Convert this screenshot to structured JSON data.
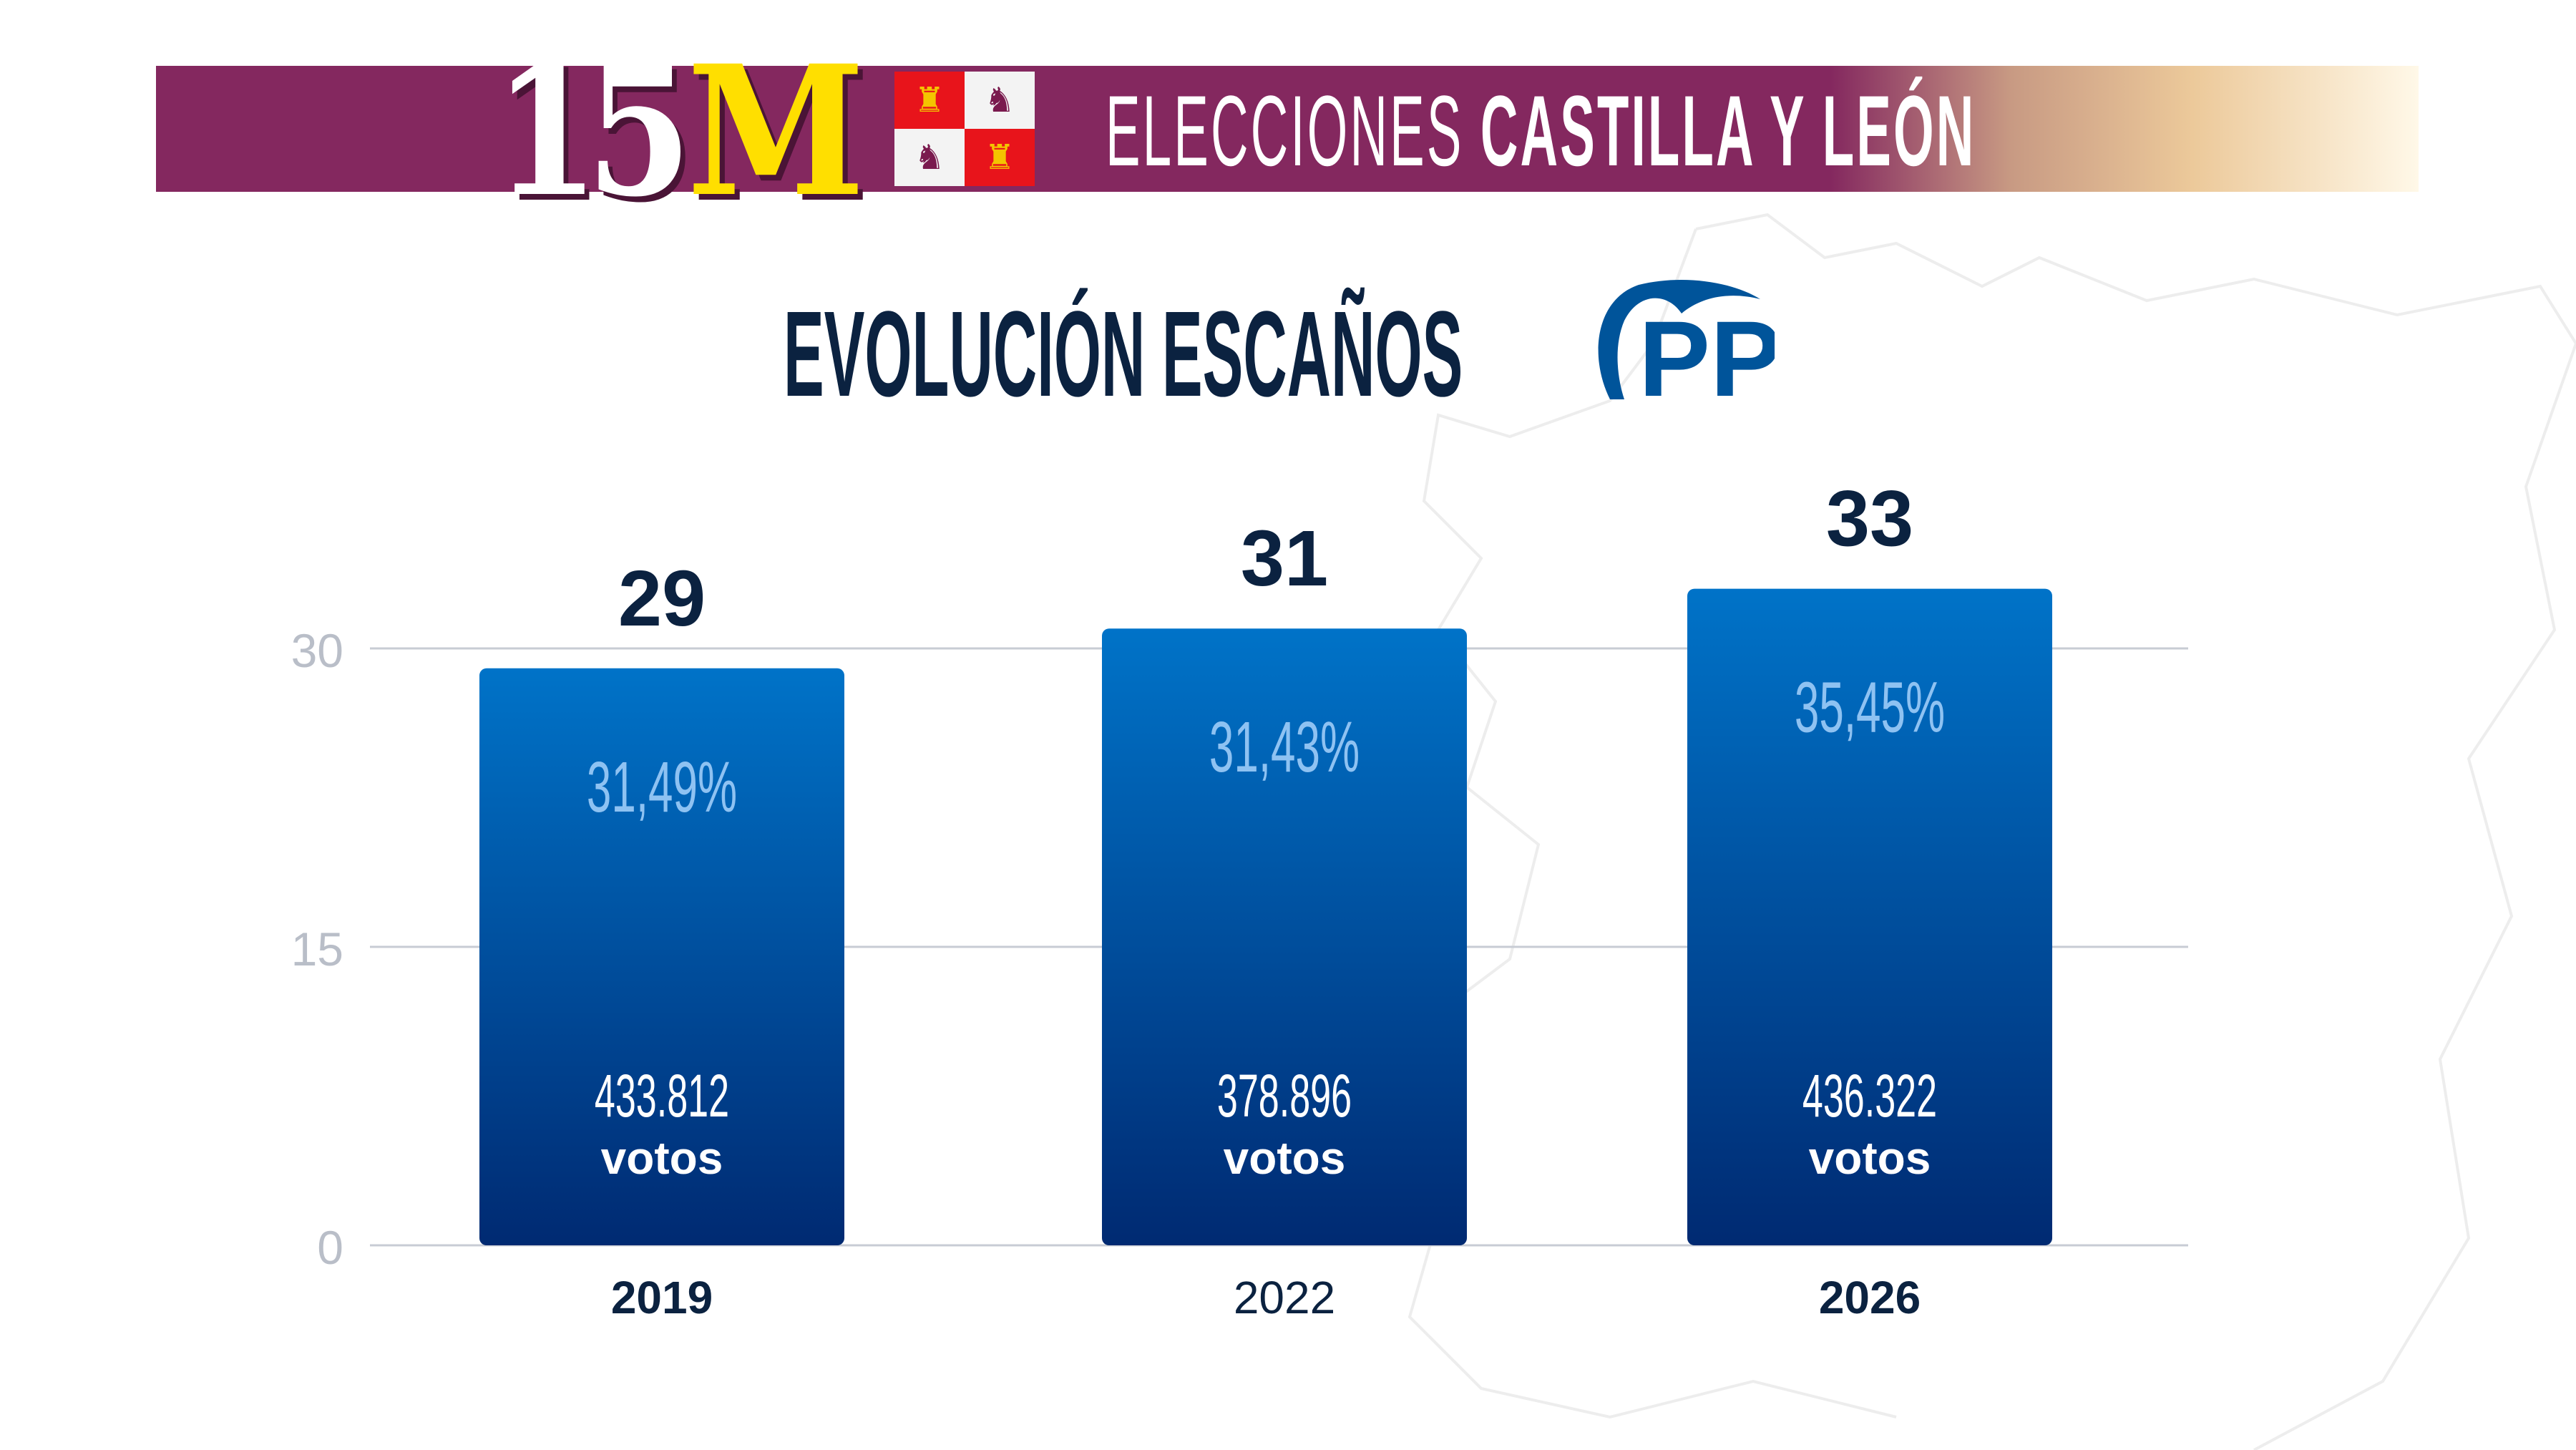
{
  "header": {
    "logo_text": "15M",
    "banner_prefix": "ELECCIONES",
    "banner_region": "CASTILLA Y LEÓN",
    "colors": {
      "banner": "#84285f",
      "logo_m": "#ffdf00"
    }
  },
  "title": "EVOLUCIÓN ESCAÑOS",
  "party_logo": "PP",
  "chart_data": {
    "type": "bar",
    "categories": [
      "2019",
      "2022",
      "2026"
    ],
    "values": [
      29,
      31,
      33
    ],
    "vote_share": [
      "31,49%",
      "31,43%",
      "35,45%"
    ],
    "votes": [
      "433.812",
      "378.896",
      "436.322"
    ],
    "votes_unit": "votos",
    "yticks": [
      0,
      15,
      30
    ],
    "ylim": [
      0,
      33
    ],
    "grid": true,
    "colors": {
      "bar_top": "#0073c8",
      "bar_bottom": "#002a72",
      "label": "#0b2240",
      "share": "#8ec2f2"
    }
  }
}
